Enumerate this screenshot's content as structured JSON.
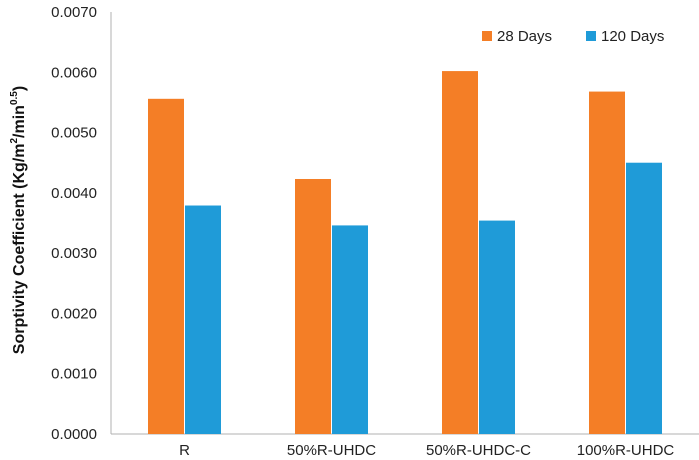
{
  "chart_data": {
    "type": "bar",
    "categories": [
      "R",
      "50%R-UHDC",
      "50%R-UHDC-C",
      "100%R-UHDC"
    ],
    "series": [
      {
        "name": "28 Days",
        "values": [
          0.00556,
          0.00423,
          0.00602,
          0.00568
        ],
        "color": "#F47E26"
      },
      {
        "name": "120 Days",
        "values": [
          0.00379,
          0.00346,
          0.00354,
          0.0045
        ],
        "color": "#1F9BD8"
      }
    ],
    "ylabel": "Sorptivity Coefficient (Kg/m²/min⁰·⁵)",
    "ylabel_parts": {
      "before": "Sorptivity Coefficient (Kg/m",
      "sup1": "2",
      "middle": "/min",
      "sup2": "0.5",
      "after": ")"
    },
    "yticks": [
      "0.0000",
      "0.0010",
      "0.0020",
      "0.0030",
      "0.0040",
      "0.0050",
      "0.0060",
      "0.0070"
    ],
    "ylim": [
      0,
      0.007
    ],
    "grid": false,
    "legend_position": "top-right"
  }
}
